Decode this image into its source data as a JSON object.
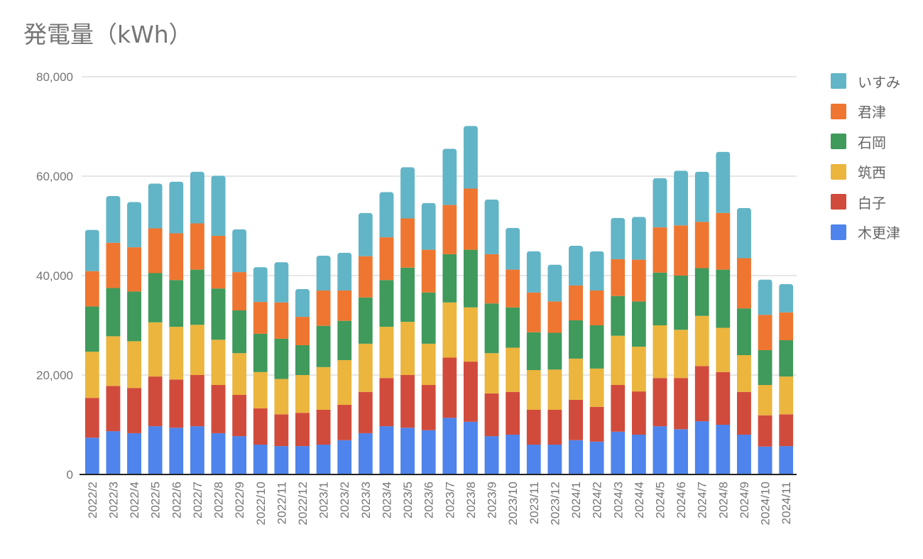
{
  "chart_data": {
    "type": "bar",
    "stacked": true,
    "title": "発電量（kWh）",
    "xlabel": "",
    "ylabel": "",
    "ylim": [
      0,
      80000
    ],
    "yticks": [
      0,
      20000,
      40000,
      60000,
      80000
    ],
    "ytick_labels": [
      "0",
      "20,000",
      "40,000",
      "60,000",
      "80,000"
    ],
    "grid": true,
    "legend_position": "right",
    "categories": [
      "2022/2",
      "2022/3",
      "2022/4",
      "2022/5",
      "2022/6",
      "2022/7",
      "2022/8",
      "2022/9",
      "2022/10",
      "2022/11",
      "2022/12",
      "2023/1",
      "2023/2",
      "2023/3",
      "2023/4",
      "2023/5",
      "2023/6",
      "2023/7",
      "2023/8",
      "2023/9",
      "2023/10",
      "2023/11",
      "2023/12",
      "2024/1",
      "2024/2",
      "2024/3",
      "2024/4",
      "2024/5",
      "2024/6",
      "2024/7",
      "2024/8",
      "2024/9",
      "2024/10",
      "2024/11"
    ],
    "series": [
      {
        "name": "木更津",
        "color": "#4e84eb",
        "values": [
          7400,
          8700,
          8300,
          9700,
          9400,
          9700,
          8300,
          7700,
          6000,
          5700,
          5700,
          6000,
          6900,
          8300,
          9700,
          9400,
          8900,
          11400,
          10600,
          7700,
          8000,
          6000,
          6000,
          6900,
          6600,
          8600,
          8000,
          9700,
          9100,
          10700,
          10000,
          8000,
          5600,
          5700
        ]
      },
      {
        "name": "白子",
        "color": "#d14b3c",
        "values": [
          8000,
          9100,
          9100,
          10000,
          9700,
          10300,
          9700,
          8300,
          7300,
          6400,
          6700,
          7000,
          7100,
          8300,
          9700,
          10600,
          9100,
          12100,
          12100,
          8600,
          8600,
          7000,
          7000,
          8100,
          7000,
          9400,
          8700,
          9700,
          10300,
          11100,
          10600,
          8600,
          6300,
          6400
        ]
      },
      {
        "name": "筑西",
        "color": "#ebb53e",
        "values": [
          9300,
          10000,
          9400,
          10900,
          10600,
          10100,
          9100,
          8400,
          7300,
          7100,
          7600,
          8600,
          9000,
          9700,
          10300,
          10700,
          8300,
          11100,
          10900,
          8100,
          8900,
          8000,
          8100,
          8300,
          7700,
          9900,
          9000,
          10600,
          9700,
          10100,
          8900,
          7400,
          6100,
          7600
        ]
      },
      {
        "name": "石岡",
        "color": "#3f9a5c",
        "values": [
          9100,
          9700,
          10000,
          9900,
          9400,
          11100,
          10300,
          8600,
          7700,
          8100,
          6000,
          8300,
          7900,
          9300,
          9400,
          10900,
          10300,
          9700,
          11600,
          10000,
          8100,
          7600,
          7400,
          7700,
          8700,
          8000,
          9100,
          10600,
          10900,
          9600,
          11700,
          9400,
          7000,
          7300
        ]
      },
      {
        "name": "君津",
        "color": "#ef7630",
        "values": [
          7100,
          9100,
          8900,
          9000,
          9400,
          9300,
          10600,
          7700,
          6400,
          7300,
          5700,
          7100,
          6100,
          8300,
          8600,
          9900,
          8600,
          9900,
          12300,
          9900,
          7600,
          8000,
          6300,
          7000,
          7000,
          7400,
          8400,
          9100,
          10100,
          9300,
          11400,
          10100,
          7100,
          5600
        ]
      },
      {
        "name": "いすみ",
        "color": "#62b5c6",
        "values": [
          8300,
          9400,
          9100,
          9000,
          10400,
          10400,
          12100,
          8600,
          7000,
          8100,
          5600,
          7000,
          7600,
          8700,
          9100,
          10300,
          9400,
          11300,
          12600,
          11000,
          8400,
          8300,
          7400,
          8000,
          7900,
          8300,
          8600,
          9900,
          11000,
          10100,
          12300,
          10100,
          7100,
          5700
        ]
      }
    ]
  }
}
